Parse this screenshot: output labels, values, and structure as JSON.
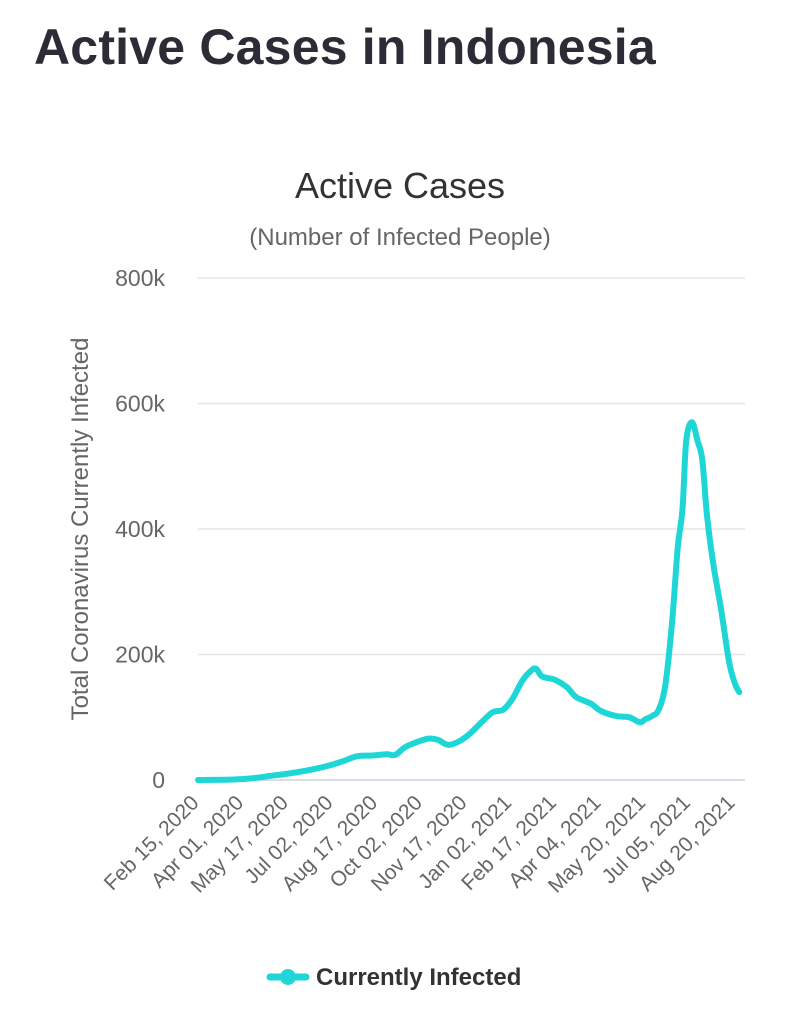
{
  "page": {
    "heading": "Active Cases in Indonesia"
  },
  "colors": {
    "series": "#1fd6d6",
    "grid": "#e6e6e6",
    "axis": "#c8d4e0"
  },
  "chart_data": {
    "type": "line",
    "title": "Active Cases",
    "subtitle": "(Number of Infected People)",
    "ylabel": "Total Coronavirus Currently Infected",
    "xlabel": "",
    "ylim": [
      0,
      800000
    ],
    "y_ticks": [
      0,
      200000,
      400000,
      600000,
      800000
    ],
    "y_tick_labels": [
      "0",
      "200k",
      "400k",
      "600k",
      "800k"
    ],
    "x_range": [
      "2020-02-15",
      "2021-09-14"
    ],
    "x_tick_labels": [
      "Feb 15, 2020",
      "Apr 01, 2020",
      "May 17, 2020",
      "Jul 02, 2020",
      "Aug 17, 2020",
      "Oct 02, 2020",
      "Nov 17, 2020",
      "Jan 02, 2021",
      "Feb 17, 2021",
      "Apr 04, 2021",
      "May 20, 2021",
      "Jul 05, 2021",
      "Aug 20, 2021"
    ],
    "grid": true,
    "legend_position": "bottom-center",
    "series": [
      {
        "name": "Currently Infected",
        "color": "#1fd6d6",
        "points": [
          [
            "2020-02-15",
            0
          ],
          [
            "2020-03-15",
            500
          ],
          [
            "2020-04-01",
            1500
          ],
          [
            "2020-04-20",
            4000
          ],
          [
            "2020-05-01",
            6500
          ],
          [
            "2020-05-17",
            9500
          ],
          [
            "2020-06-01",
            13000
          ],
          [
            "2020-06-15",
            17000
          ],
          [
            "2020-07-02",
            23000
          ],
          [
            "2020-07-17",
            30000
          ],
          [
            "2020-08-01",
            38000
          ],
          [
            "2020-08-17",
            39000
          ],
          [
            "2020-09-01",
            41000
          ],
          [
            "2020-09-10",
            40000
          ],
          [
            "2020-09-20",
            52000
          ],
          [
            "2020-10-02",
            60000
          ],
          [
            "2020-10-15",
            66000
          ],
          [
            "2020-10-25",
            64000
          ],
          [
            "2020-11-05",
            56000
          ],
          [
            "2020-11-17",
            62000
          ],
          [
            "2020-11-28",
            74000
          ],
          [
            "2020-12-10",
            92000
          ],
          [
            "2020-12-22",
            108000
          ],
          [
            "2021-01-02",
            112000
          ],
          [
            "2021-01-12",
            130000
          ],
          [
            "2021-01-22",
            158000
          ],
          [
            "2021-02-01",
            175000
          ],
          [
            "2021-02-06",
            177000
          ],
          [
            "2021-02-12",
            165000
          ],
          [
            "2021-02-25",
            160000
          ],
          [
            "2021-03-10",
            148000
          ],
          [
            "2021-03-20",
            132000
          ],
          [
            "2021-04-04",
            122000
          ],
          [
            "2021-04-15",
            110000
          ],
          [
            "2021-05-01",
            102000
          ],
          [
            "2021-05-15",
            100000
          ],
          [
            "2021-05-26",
            92000
          ],
          [
            "2021-06-01",
            97000
          ],
          [
            "2021-06-08",
            102000
          ],
          [
            "2021-06-15",
            112000
          ],
          [
            "2021-06-22",
            152000
          ],
          [
            "2021-06-29",
            250000
          ],
          [
            "2021-07-05",
            370000
          ],
          [
            "2021-07-10",
            430000
          ],
          [
            "2021-07-14",
            540000
          ],
          [
            "2021-07-20",
            570000
          ],
          [
            "2021-07-26",
            540000
          ],
          [
            "2021-07-31",
            510000
          ],
          [
            "2021-08-05",
            420000
          ],
          [
            "2021-08-12",
            340000
          ],
          [
            "2021-08-20",
            270000
          ],
          [
            "2021-08-28",
            190000
          ],
          [
            "2021-09-03",
            155000
          ],
          [
            "2021-09-08",
            140000
          ]
        ]
      }
    ]
  }
}
